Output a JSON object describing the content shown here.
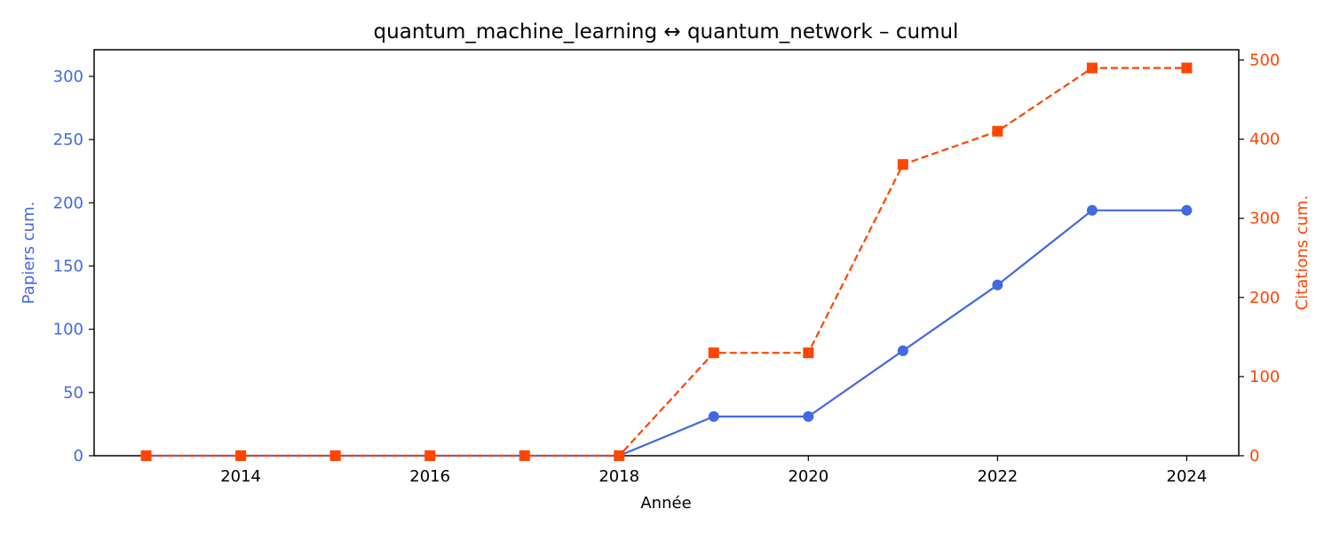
{
  "chart_data": {
    "type": "line",
    "title": "quantum_machine_learning  ↔  quantum_network  –  cumul",
    "xlabel": "Année",
    "ylabel_left": "Papiers cum.",
    "ylabel_right": "Citations cum.",
    "x": [
      2013,
      2014,
      2015,
      2016,
      2017,
      2018,
      2019,
      2020,
      2021,
      2022,
      2023,
      2024
    ],
    "xlim": [
      2012.45,
      2024.55
    ],
    "ylim_left": [
      0,
      321
    ],
    "ylim_right": [
      0,
      513
    ],
    "xticks": [
      2014,
      2016,
      2018,
      2020,
      2022,
      2024
    ],
    "yticks_left": [
      0,
      50,
      100,
      150,
      200,
      250,
      300
    ],
    "yticks_right": [
      0,
      100,
      200,
      300,
      400,
      500
    ],
    "grid": false,
    "colors": {
      "left": "#4169e1",
      "right": "#ff4500",
      "axis": "#000000"
    },
    "series": [
      {
        "axis": "left",
        "marker": "circle",
        "style": "solid",
        "color": "#4169e1",
        "values": [
          0,
          0,
          0,
          0,
          0,
          0,
          31,
          31,
          83,
          135,
          194,
          194
        ]
      },
      {
        "axis": "right",
        "marker": "square",
        "style": "dashed",
        "color": "#ff4500",
        "values": [
          0,
          0,
          0,
          0,
          0,
          0,
          130,
          130,
          368,
          410,
          490,
          490
        ]
      }
    ]
  }
}
